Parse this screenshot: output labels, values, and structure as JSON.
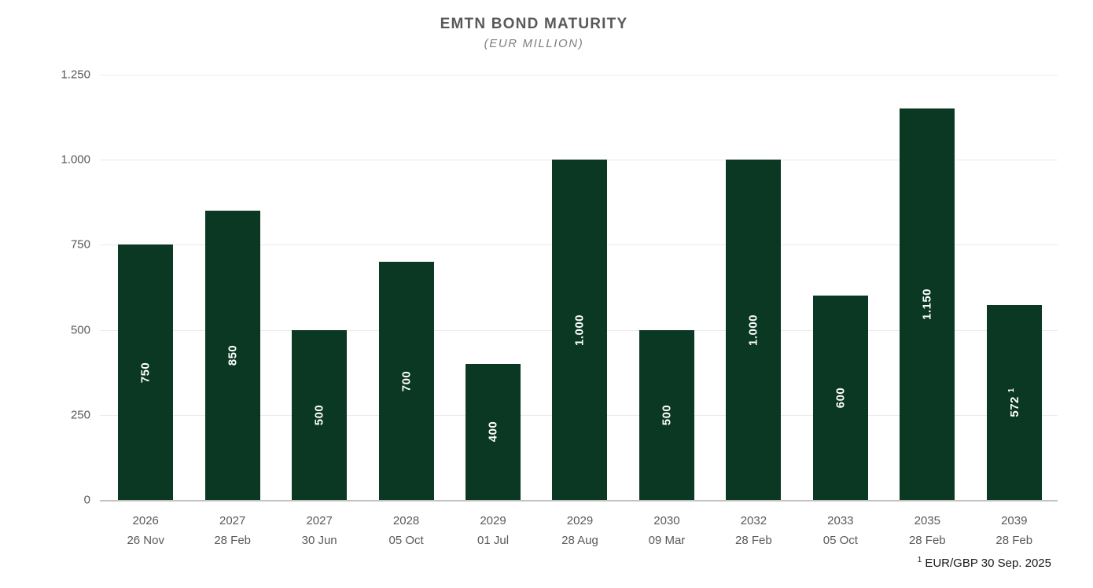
{
  "header": {
    "title": "EMTN BOND MATURITY",
    "subtitle": "(EUR MILLION)"
  },
  "footnote": {
    "sup": "1",
    "text": "EUR/GBP 30 Sep. 2025"
  },
  "colors": {
    "bar": "#0a3823",
    "gridline": "#ebebeb",
    "baseline": "#c3c3c3",
    "axis_text": "#595959",
    "title_text": "#595959",
    "subtitle_text": "#7f7f7f",
    "bar_label_text": "#ffffff"
  },
  "chart_data": {
    "type": "bar",
    "title": "EMTN BOND MATURITY",
    "subtitle": "(EUR MILLION)",
    "unit": "EUR million",
    "ylim": [
      0,
      1250
    ],
    "yticks": [
      0,
      250,
      500,
      750,
      1000,
      1250
    ],
    "ytick_labels": [
      "0",
      "250",
      "500",
      "750",
      "1.000",
      "1.250"
    ],
    "grid": "horizontal",
    "legend": "none",
    "categories": [
      {
        "year": "2026",
        "date": "26 Nov"
      },
      {
        "year": "2027",
        "date": "28 Feb"
      },
      {
        "year": "2027",
        "date": "30 Jun"
      },
      {
        "year": "2028",
        "date": "05 Oct"
      },
      {
        "year": "2029",
        "date": "01 Jul"
      },
      {
        "year": "2029",
        "date": "28 Aug"
      },
      {
        "year": "2030",
        "date": "09 Mar"
      },
      {
        "year": "2032",
        "date": "28 Feb"
      },
      {
        "year": "2033",
        "date": "05 Oct"
      },
      {
        "year": "2035",
        "date": "28 Feb"
      },
      {
        "year": "2039",
        "date": "28 Feb"
      }
    ],
    "values": [
      750,
      850,
      500,
      700,
      400,
      1000,
      500,
      1000,
      600,
      1150,
      572
    ],
    "bar_labels": [
      "750",
      "850",
      "500",
      "700",
      "400",
      "1.000",
      "500",
      "1.000",
      "600",
      "1.150",
      "572"
    ],
    "bar_label_footnote_marks": [
      "",
      "",
      "",
      "",
      "",
      "",
      "",
      "",
      "",
      "",
      "1"
    ],
    "footnote": "1 EUR/GBP 30 Sep. 2025"
  }
}
